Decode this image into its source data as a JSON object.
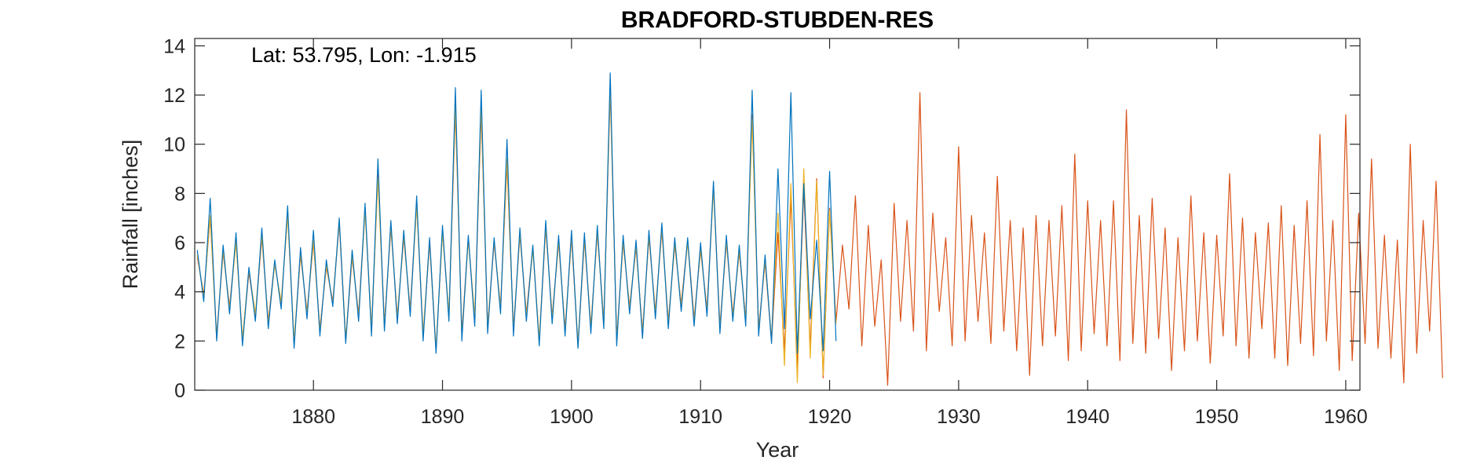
{
  "chart_data": {
    "type": "line",
    "title": "BRADFORD-STUBDEN-RES",
    "annotation": "Lat: 53.795, Lon: -1.915",
    "xlabel": "Year",
    "ylabel": "Rainfall [inches]",
    "xlim": [
      1870.8,
      1961.1
    ],
    "ylim": [
      0,
      14.3
    ],
    "xticks": [
      1880,
      1890,
      1900,
      1910,
      1920,
      1930,
      1940,
      1950,
      1960
    ],
    "xtick_labels": [
      "1880",
      "1890",
      "1900",
      "1910",
      "1920",
      "1930",
      "1940",
      "1950",
      "1960"
    ],
    "yticks": [
      0,
      2,
      4,
      6,
      8,
      10,
      12,
      14
    ],
    "ytick_labels": [
      "0",
      "2",
      "4",
      "6",
      "8",
      "10",
      "12",
      "14"
    ],
    "grid": false,
    "colors": [
      "#0072BD",
      "#D95319",
      "#EDB120"
    ],
    "series": [
      {
        "color": "#D95319",
        "x_start": 1871.0,
        "x_step": 0.5,
        "values": [
          5.4,
          3.9,
          7.0,
          2.2,
          5.6,
          3.4,
          6.1,
          2.0,
          4.8,
          3.0,
          6.2,
          2.8,
          5.2,
          3.5,
          7.2,
          1.9,
          5.5,
          3.2,
          6.0,
          2.5,
          5.0,
          3.6,
          6.8,
          2.0,
          5.4,
          3.1,
          7.4,
          2.4,
          8.8,
          2.7,
          6.6,
          3.0,
          6.2,
          3.3,
          7.6,
          2.2,
          6.0,
          1.6,
          6.5,
          3.0,
          11.4,
          2.3,
          6.2,
          2.9,
          11.3,
          2.6,
          6.0,
          3.4,
          9.2,
          2.5,
          6.3,
          3.1,
          5.8,
          2.0,
          6.6,
          3.0,
          6.0,
          2.5,
          6.2,
          1.8,
          6.1,
          2.6,
          6.4,
          2.8,
          12.2,
          2.1,
          6.0,
          3.4,
          5.8,
          2.4,
          6.2,
          3.2,
          6.5,
          2.8,
          5.9,
          3.5,
          6.1,
          2.9,
          5.7,
          3.3,
          8.3,
          2.6,
          6.0,
          3.1,
          5.6,
          2.9,
          11.2,
          2.5,
          5.2,
          2.0,
          6.4,
          1.6,
          7.8,
          0.9,
          8.2,
          1.7,
          8.6,
          0.5,
          7.4,
          2.8,
          5.9,
          3.3,
          7.9,
          1.8,
          6.7,
          2.6,
          5.3,
          0.2,
          7.6,
          2.8,
          6.9,
          2.4,
          12.1,
          1.6,
          7.2,
          3.2,
          6.2,
          1.8,
          9.9,
          2.0,
          7.1,
          2.8,
          6.4,
          1.9,
          8.7,
          2.4,
          6.9,
          1.6,
          6.6,
          0.6,
          7.1,
          1.8,
          6.9,
          2.2,
          7.5,
          1.2,
          9.6,
          1.6,
          7.7,
          2.3,
          6.9,
          1.8,
          7.7,
          1.2,
          11.4,
          1.9,
          7.1,
          1.5,
          7.8,
          2.1,
          6.6,
          0.8,
          6.2,
          1.6,
          7.9,
          2.0,
          6.4,
          1.1,
          6.3,
          2.2,
          8.8,
          1.8,
          7.0,
          1.3,
          6.4,
          2.5,
          6.8,
          1.3,
          7.5,
          1.0,
          6.7,
          1.9,
          7.7,
          1.4,
          10.4,
          2.0,
          6.9,
          0.8,
          11.2,
          1.2,
          7.2,
          1.9,
          9.4,
          1.7,
          6.3,
          1.3,
          6.1,
          0.3,
          10.0,
          1.5,
          6.9,
          2.4,
          8.5,
          0.5
        ],
        "line_width": 1.2
      },
      {
        "color": "#EDB120",
        "x_start": 1871.0,
        "x_step": 0.5,
        "values": [
          5.5,
          3.8,
          7.1,
          2.1,
          5.7,
          3.3,
          6.0,
          2.1,
          4.9,
          3.1,
          6.3,
          2.7,
          5.1,
          3.6,
          7.1,
          2.0,
          5.6,
          3.1,
          6.1,
          2.4,
          5.1,
          3.5,
          6.9,
          2.1,
          5.5,
          3.0,
          7.3,
          2.5,
          8.6,
          2.6,
          6.7,
          2.9,
          6.3,
          3.2,
          7.5,
          2.3,
          6.1,
          1.7,
          6.4,
          3.1,
          11.6,
          2.2,
          6.1,
          3.0,
          11.5,
          2.5,
          6.1,
          3.3,
          9.4,
          2.4,
          6.4,
          3.0,
          5.7,
          2.1,
          6.7,
          2.9,
          6.1,
          2.4,
          6.3,
          1.9,
          6.2,
          2.5,
          6.5,
          2.7,
          12.4,
          2.0,
          6.1,
          3.3,
          5.9,
          2.3,
          6.3,
          3.1,
          6.6,
          2.7,
          6.0,
          3.4,
          6.0,
          2.8,
          5.8,
          3.2,
          8.2,
          2.5,
          6.1,
          3.0,
          5.7,
          2.8,
          11.0,
          2.4,
          5.3,
          2.1,
          7.2,
          1.0,
          8.4,
          0.3,
          9.0,
          1.3,
          8.5,
          0.6,
          7.3,
          2.7
        ]
      },
      {
        "color": "#0072BD",
        "x_start": 1871.0,
        "x_step": 0.5,
        "values": [
          5.7,
          3.6,
          7.8,
          2.0,
          5.9,
          3.1,
          6.4,
          1.8,
          5.0,
          2.8,
          6.6,
          2.5,
          5.3,
          3.3,
          7.5,
          1.7,
          5.8,
          2.9,
          6.5,
          2.2,
          5.3,
          3.4,
          7.0,
          1.9,
          5.7,
          2.8,
          7.6,
          2.2,
          9.4,
          2.4,
          6.9,
          2.7,
          6.5,
          3.0,
          7.9,
          2.0,
          6.2,
          1.5,
          6.7,
          2.8,
          12.3,
          2.0,
          6.3,
          2.6,
          12.2,
          2.3,
          6.2,
          3.1,
          10.2,
          2.2,
          6.6,
          2.8,
          5.9,
          1.8,
          6.9,
          2.7,
          6.3,
          2.2,
          6.5,
          1.7,
          6.4,
          2.3,
          6.7,
          2.5,
          12.9,
          1.8,
          6.3,
          3.1,
          6.1,
          2.1,
          6.5,
          2.9,
          6.8,
          2.5,
          6.2,
          3.2,
          6.2,
          2.6,
          6.0,
          3.0,
          8.5,
          2.3,
          6.3,
          2.8,
          5.9,
          2.6,
          12.2,
          2.2,
          5.5,
          1.9,
          9.0,
          2.5,
          12.1,
          1.5,
          8.4,
          2.9,
          6.1,
          1.6,
          8.9,
          2.0
        ]
      }
    ]
  }
}
